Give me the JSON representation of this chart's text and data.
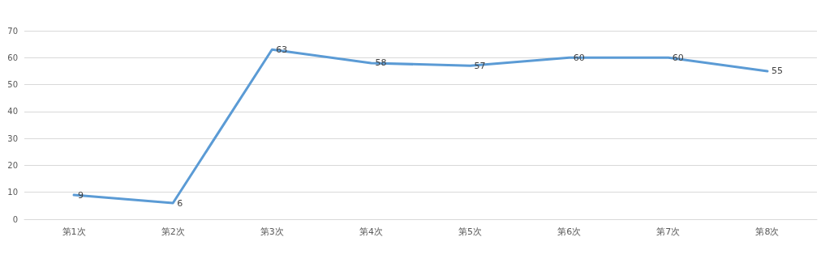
{
  "chart_data": {
    "type": "line",
    "categories": [
      "第1次",
      "第2次",
      "第3次",
      "第4次",
      "第5次",
      "第6次",
      "第7次",
      "第8次"
    ],
    "series": [
      {
        "color": "#5b9bd5",
        "values": [
          9,
          6,
          63,
          58,
          57,
          60,
          60,
          55
        ]
      }
    ],
    "ylim": [
      0,
      70
    ],
    "yticks": [
      0,
      10,
      20,
      30,
      40,
      50,
      60,
      70
    ],
    "grid": "y",
    "marker": "none",
    "line_style": "solid",
    "data_labels": true
  }
}
